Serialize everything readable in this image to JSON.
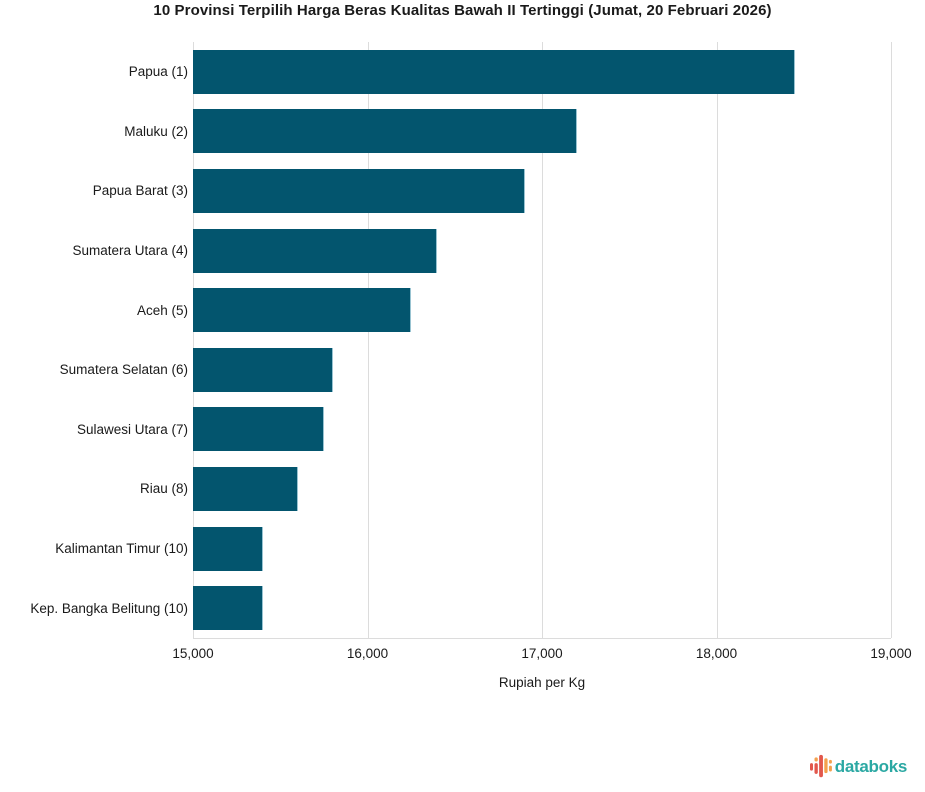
{
  "chart_data": {
    "type": "bar",
    "orientation": "horizontal",
    "title": "10 Provinsi Terpilih Harga Beras Kualitas Bawah II Tertinggi (Jumat, 20 Februari 2026)",
    "categories": [
      "Papua (1)",
      "Maluku (2)",
      "Papua Barat (3)",
      "Sumatera Utara (4)",
      "Aceh (5)",
      "Sumatera Selatan (6)",
      "Sulawesi Utara (7)",
      "Riau (8)",
      "Kalimantan Timur (10)",
      "Kep. Bangka Belitung (10)"
    ],
    "values": [
      18450,
      17200,
      16900,
      16400,
      16250,
      15800,
      15750,
      15600,
      15400,
      15400
    ],
    "xlabel": "Rupiah per Kg",
    "ylabel": "",
    "xlim": [
      15000,
      19000
    ],
    "xticks": [
      {
        "value": 15000,
        "label": "15,000"
      },
      {
        "value": 16000,
        "label": "16,000"
      },
      {
        "value": 17000,
        "label": "17,000"
      },
      {
        "value": 18000,
        "label": "18,000"
      },
      {
        "value": 19000,
        "label": "19,000"
      }
    ],
    "grid": "vertical",
    "legend": false,
    "colors": {
      "bar": "#03556E",
      "grid": "#DCDCDC",
      "text": "#1A1A1A"
    }
  },
  "branding": {
    "logo_text": "databoks",
    "logo_text_color": "#2BA8A3",
    "icon": "databoks-bars-icon",
    "icon_colors": {
      "red": "#E2574C",
      "orange": "#F4A14D"
    }
  }
}
